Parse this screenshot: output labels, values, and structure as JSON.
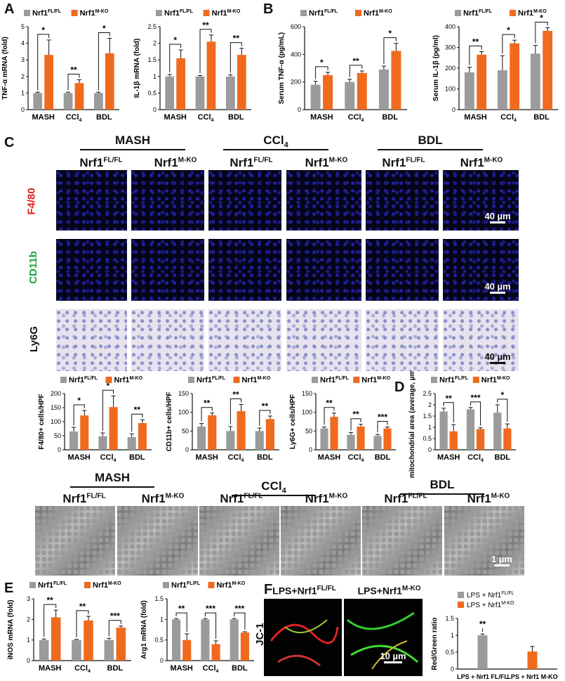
{
  "panels": {
    "A": "A",
    "B": "B",
    "C": "C",
    "D": "D",
    "E": "E",
    "F": "F"
  },
  "colors": {
    "fl": "#9b9b9b",
    "ko": "#f06a1e",
    "red": "#e0201a",
    "green": "#1aa63a"
  },
  "legend": {
    "fl_base": "Nrf1",
    "fl_sup": "FL/FL",
    "ko_base": "Nrf1",
    "ko_sup": "M-KO"
  },
  "groups": {
    "mash": "MASH",
    "ccl4": "CCl",
    "ccl4_sub": "4",
    "bdl": "BDL"
  },
  "stains": {
    "f480": "F4/80",
    "cd11b": "CD11b",
    "ly6g": "Ly6G",
    "jc1": "JC-1"
  },
  "scalebars": {
    "s40": "40 µm",
    "s1": "1 µm",
    "s10": "10 µm"
  },
  "F": {
    "lps_fl_prefix": "LPS+Nrf1",
    "lps_fl_sup": "FL/FL",
    "lps_ko_prefix": "LPS+Nrf1",
    "lps_ko_sup": "M-KO",
    "legend_fl": "LPS + Nrf1",
    "legend_ko": "LPS + Nrf1",
    "sig": "**"
  },
  "chart_data": [
    {
      "id": "A1",
      "type": "bar",
      "ylabel": "TNF-α mRNA (fold)",
      "ylim": [
        0,
        5
      ],
      "ticks": [
        0,
        1,
        2,
        3,
        4,
        5
      ],
      "categories": [
        "MASH",
        "CCl4",
        "BDL"
      ],
      "series": [
        {
          "name": "Nrf1 FL/FL",
          "values": [
            1,
            1,
            1
          ],
          "err": [
            0.05,
            0.05,
            0.05
          ]
        },
        {
          "name": "Nrf1 M-KO",
          "values": [
            3.3,
            1.6,
            3.4
          ],
          "err": [
            0.9,
            0.2,
            0.9
          ]
        }
      ],
      "sig": [
        "*",
        "**",
        "*"
      ]
    },
    {
      "id": "A2",
      "type": "bar",
      "ylabel": "IL-1β mRNA (fold)",
      "ylim": [
        0,
        2.5
      ],
      "ticks": [
        0,
        0.5,
        1.0,
        1.5,
        2.0,
        2.5
      ],
      "categories": [
        "MASH",
        "CCl4",
        "BDL"
      ],
      "series": [
        {
          "name": "Nrf1 FL/FL",
          "values": [
            1,
            1,
            1
          ],
          "err": [
            0.06,
            0.03,
            0.05
          ]
        },
        {
          "name": "Nrf1 M-KO",
          "values": [
            1.55,
            2.05,
            1.65
          ],
          "err": [
            0.25,
            0.2,
            0.2
          ]
        }
      ],
      "sig": [
        "*",
        "**",
        "**"
      ]
    },
    {
      "id": "B1",
      "type": "bar",
      "ylabel": "Serum TNF-α (pg/mL)",
      "ylim": [
        0,
        600
      ],
      "ticks": [
        0,
        200,
        400,
        600
      ],
      "categories": [
        "MASH",
        "CCl4",
        "BDL"
      ],
      "series": [
        {
          "name": "Nrf1 FL/FL",
          "values": [
            180,
            200,
            290
          ],
          "err": [
            25,
            20,
            25
          ]
        },
        {
          "name": "Nrf1 M-KO",
          "values": [
            250,
            265,
            425
          ],
          "err": [
            20,
            15,
            55
          ]
        }
      ],
      "sig": [
        "*",
        "**",
        "*"
      ]
    },
    {
      "id": "B2",
      "type": "bar",
      "ylabel": "Serum IL-1β (pg/ml)",
      "ylim": [
        0,
        400
      ],
      "ticks": [
        0,
        100,
        200,
        300,
        400
      ],
      "categories": [
        "MASH",
        "CCl4",
        "BDL"
      ],
      "series": [
        {
          "name": "Nrf1 FL/FL",
          "values": [
            180,
            190,
            270
          ],
          "err": [
            25,
            70,
            40
          ]
        },
        {
          "name": "Nrf1 M-KO",
          "values": [
            265,
            320,
            380
          ],
          "err": [
            15,
            15,
            15
          ]
        }
      ],
      "sig": [
        "**",
        "*",
        "*"
      ]
    },
    {
      "id": "C1",
      "type": "bar",
      "ylabel": "F4/80+ cells/HPF",
      "ylim": [
        0,
        200
      ],
      "ticks": [
        0,
        50,
        100,
        150,
        200
      ],
      "categories": [
        "MASH",
        "CCl4",
        "BDL"
      ],
      "series": [
        {
          "name": "Nrf1 FL/FL",
          "values": [
            65,
            48,
            45
          ],
          "err": [
            15,
            12,
            12
          ]
        },
        {
          "name": "Nrf1 M-KO",
          "values": [
            122,
            152,
            95
          ],
          "err": [
            18,
            40,
            12
          ]
        }
      ],
      "sig": [
        "*",
        "*",
        "**"
      ]
    },
    {
      "id": "C2",
      "type": "bar",
      "ylabel": "CD11b+ cells/HPF",
      "ylim": [
        0,
        150
      ],
      "ticks": [
        0,
        50,
        100,
        150
      ],
      "categories": [
        "MASH",
        "CCl4",
        "BDL"
      ],
      "series": [
        {
          "name": "Nrf1 FL/FL",
          "values": [
            62,
            50,
            50
          ],
          "err": [
            8,
            12,
            8
          ]
        },
        {
          "name": "Nrf1 M-KO",
          "values": [
            92,
            103,
            82
          ],
          "err": [
            6,
            18,
            8
          ]
        }
      ],
      "sig": [
        "**",
        "**",
        "**"
      ]
    },
    {
      "id": "C3",
      "type": "bar",
      "ylabel": "Ly6G+ cells/HPF",
      "ylim": [
        0,
        150
      ],
      "ticks": [
        0,
        50,
        100,
        150
      ],
      "categories": [
        "MASH",
        "CCl4",
        "BDL"
      ],
      "series": [
        {
          "name": "Nrf1 FL/FL",
          "values": [
            57,
            40,
            37
          ],
          "err": [
            4,
            6,
            4
          ]
        },
        {
          "name": "Nrf1 M-KO",
          "values": [
            88,
            62,
            57
          ],
          "err": [
            10,
            6,
            4
          ]
        }
      ],
      "sig": [
        "**",
        "**",
        "***"
      ]
    },
    {
      "id": "D",
      "type": "bar",
      "ylabel": "mitochondrial area (average, µm²)",
      "ylim": [
        0,
        2.5
      ],
      "ticks": [
        0,
        0.5,
        1.0,
        1.5,
        2.0,
        2.5
      ],
      "categories": [
        "MASH",
        "CCl4",
        "BDL"
      ],
      "series": [
        {
          "name": "Nrf1 FL/FL",
          "values": [
            1.7,
            1.8,
            1.65
          ],
          "err": [
            0.15,
            0.08,
            0.35
          ]
        },
        {
          "name": "Nrf1 M-KO",
          "values": [
            0.82,
            0.92,
            0.95
          ],
          "err": [
            0.3,
            0.06,
            0.2
          ]
        }
      ],
      "sig": [
        "**",
        "***",
        "*"
      ]
    },
    {
      "id": "E1",
      "type": "bar",
      "ylabel": "iNOS mRNA (fold)",
      "ylim": [
        0,
        3
      ],
      "ticks": [
        0,
        1,
        2,
        3
      ],
      "categories": [
        "MASH",
        "CCl4",
        "BDL"
      ],
      "series": [
        {
          "name": "Nrf1 FL/FL",
          "values": [
            1,
            1,
            1
          ],
          "err": [
            0.05,
            0.03,
            0.08
          ]
        },
        {
          "name": "Nrf1 M-KO",
          "values": [
            2.1,
            1.95,
            1.6
          ],
          "err": [
            0.35,
            0.2,
            0.08
          ]
        }
      ],
      "sig": [
        "**",
        "**",
        "***"
      ]
    },
    {
      "id": "E2",
      "type": "bar",
      "ylabel": "Arg1 mRNA (fold)",
      "ylim": [
        0,
        1.5
      ],
      "ticks": [
        0,
        0.5,
        1.0,
        1.5
      ],
      "categories": [
        "MASH",
        "CCl4",
        "BDL"
      ],
      "series": [
        {
          "name": "Nrf1 FL/FL",
          "values": [
            1,
            1,
            1
          ],
          "err": [
            0.02,
            0.02,
            0.02
          ]
        },
        {
          "name": "Nrf1 M-KO",
          "values": [
            0.5,
            0.4,
            0.68
          ],
          "err": [
            0.15,
            0.08,
            0.02
          ]
        }
      ],
      "sig": [
        "**",
        "***",
        "***"
      ]
    },
    {
      "id": "F",
      "type": "bar",
      "ylabel": "Red/Green ratio",
      "ylim": [
        0,
        1.5
      ],
      "ticks": [
        0,
        0.5,
        1.0,
        1.5
      ],
      "categories": [
        "LPS + Nrf1 FL/FL",
        "LPS + Nrf1 M-KO"
      ],
      "series": [
        {
          "name": "ratio",
          "values": [
            1.0,
            0.52
          ],
          "err": [
            0.04,
            0.15
          ]
        }
      ],
      "sig": [
        "**"
      ]
    }
  ]
}
